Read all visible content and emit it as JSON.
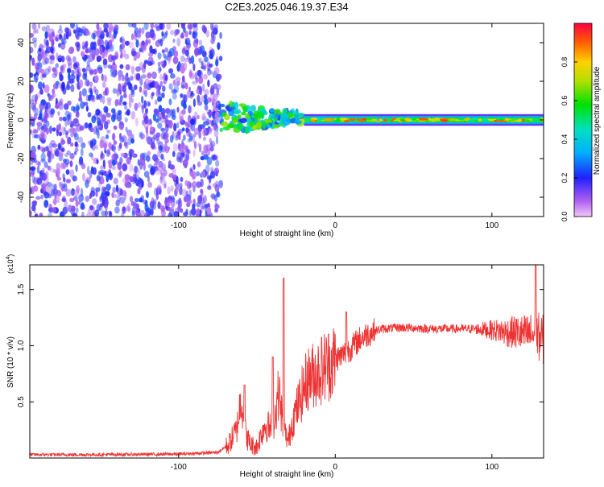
{
  "title": "C2E3.2025.046.19.37.E34",
  "colors": {
    "spectral_points": "#6a18e8",
    "snr_line": "#ee3333",
    "axis": "#000000"
  },
  "chart_data": [
    {
      "type": "heatmap",
      "title": "C2E3.2025.046.19.37.E34",
      "xlabel": "Height of straight line (km)",
      "ylabel": "Frequency (Hz)",
      "xlim": [
        -195,
        133
      ],
      "ylim": [
        -50,
        50
      ],
      "x_ticks": [
        -100,
        0,
        100
      ],
      "y_ticks": [
        -40,
        -20,
        0,
        20,
        40
      ],
      "grid": false,
      "colorbar": {
        "label": "Normalized spectral amplitude",
        "range": [
          0,
          1
        ],
        "ticks": [
          "0.0",
          "0.2",
          "0.4",
          "0.6",
          "0.8"
        ],
        "colormap": "rainbow (magenta-blue-cyan-green-yellow-red)"
      },
      "regions": [
        {
          "description": "broadband noise",
          "x_range": [
            -195,
            -73
          ],
          "freq_range": [
            -50,
            50
          ],
          "amplitude": [
            0.05,
            0.25
          ]
        },
        {
          "description": "signal onset",
          "x_range": [
            -73,
            -20
          ],
          "freq_range": [
            -15,
            12
          ],
          "amplitude": [
            0.2,
            0.7
          ]
        },
        {
          "description": "stable line near 0 Hz",
          "x_range": [
            -20,
            133
          ],
          "freq_range": [
            -2,
            2
          ],
          "amplitude": [
            0.4,
            0.95
          ]
        }
      ]
    },
    {
      "type": "line",
      "xlabel": "Height of straight line (km)",
      "ylabel": "SNR (10 * v/v)",
      "y_scale_label": "(x10",
      "y_scale_exponent": "4",
      "xlim": [
        -195,
        133
      ],
      "ylim": [
        0,
        1.72
      ],
      "x_ticks": [
        -100,
        0,
        100
      ],
      "y_ticks": [
        0.5,
        1.0,
        1.5
      ],
      "grid": false,
      "series": [
        {
          "x": [
            -195,
            -150,
            -100,
            -75,
            -68,
            -63,
            -60,
            -57,
            -54,
            -50,
            -45,
            -40,
            -36,
            -33,
            -30,
            -27,
            -23,
            -18,
            -13,
            -8,
            -3,
            0,
            5,
            10,
            15,
            20,
            25,
            30,
            40,
            50,
            60,
            70,
            80,
            90,
            100,
            105,
            110,
            115,
            120,
            125,
            130,
            133
          ],
          "y": [
            0.03,
            0.03,
            0.035,
            0.05,
            0.12,
            0.25,
            0.55,
            0.2,
            0.12,
            0.1,
            0.3,
            0.25,
            0.6,
            0.25,
            0.15,
            0.35,
            0.5,
            0.7,
            0.75,
            0.8,
            0.85,
            0.88,
            0.92,
            0.98,
            1.05,
            1.1,
            1.13,
            1.15,
            1.16,
            1.16,
            1.15,
            1.15,
            1.15,
            1.15,
            1.14,
            1.13,
            1.12,
            1.12,
            1.1,
            1.1,
            1.08,
            1.05
          ]
        }
      ],
      "peaks": [
        {
          "x": -58,
          "y": 0.65
        },
        {
          "x": -33,
          "y": 1.6
        },
        {
          "x": -40,
          "y": 0.9
        },
        {
          "x": 7,
          "y": 1.3
        },
        {
          "x": 128,
          "y": 1.72
        }
      ]
    }
  ]
}
